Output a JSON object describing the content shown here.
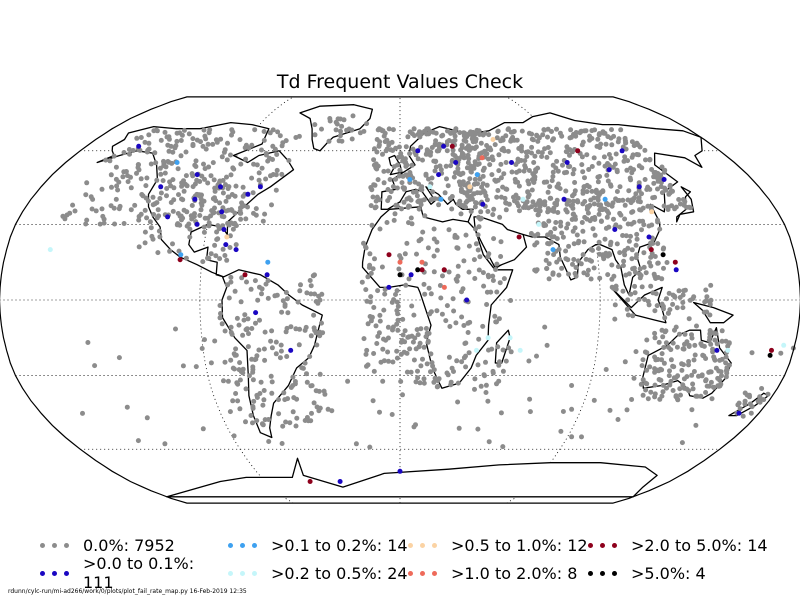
{
  "title": "Td Frequent Values Check",
  "footer": "rdunn/cylc-run/mi-ad266/work/0/plots/plot_fail_rate_map.py   16-Feb-2019 12:35",
  "legend": [
    {
      "label": "0.0%: 7952",
      "color": "#8c8c8c"
    },
    {
      "label": ">0.0 to 0.1%: 111",
      "color": "#1a06c2"
    },
    {
      "label": ">0.1 to 0.2%: 14",
      "color": "#3ea1f0"
    },
    {
      "label": ">0.2 to 0.5%: 24",
      "color": "#c5f6fa"
    },
    {
      "label": ">0.5 to 1.0%: 12",
      "color": "#fbd3a4"
    },
    {
      "label": ">1.0 to 2.0%: 8",
      "color": "#ee6a5a"
    },
    {
      "label": ">2.0 to 5.0%: 14",
      "color": "#8e001c"
    },
    {
      "label": ">5.0%: 4",
      "color": "#000000"
    }
  ],
  "chart_data": {
    "type": "scatter",
    "projection": "Robinson",
    "grid": true,
    "categories": [
      "0.0%",
      ">0.0 to 0.1%",
      ">0.1 to 0.2%",
      ">0.2 to 0.5%",
      ">0.5 to 1.0%",
      ">1.0 to 2.0%",
      ">2.0 to 5.0%",
      ">5.0%"
    ],
    "counts": [
      7952,
      111,
      14,
      24,
      12,
      8,
      14,
      4
    ],
    "highlighted_stations": [
      {
        "lon": -75,
        "lat": 42,
        "class": 1
      },
      {
        "lon": -100,
        "lat": 40,
        "class": 1
      },
      {
        "lon": -120,
        "lat": 45,
        "class": 1
      },
      {
        "lon": -150,
        "lat": 62,
        "class": 1
      },
      {
        "lon": -85,
        "lat": 35,
        "class": 1
      },
      {
        "lon": -95,
        "lat": 30,
        "class": 1
      },
      {
        "lon": -70,
        "lat": 45,
        "class": 1
      },
      {
        "lon": -82,
        "lat": 28,
        "class": 1
      },
      {
        "lon": -110,
        "lat": 33,
        "class": 1
      },
      {
        "lon": -80,
        "lat": 22,
        "class": 1
      },
      {
        "lon": -75,
        "lat": 20,
        "class": 1
      },
      {
        "lon": -60,
        "lat": 10,
        "class": 1
      },
      {
        "lon": -65,
        "lat": -5,
        "class": 1
      },
      {
        "lon": -50,
        "lat": -20,
        "class": 1
      },
      {
        "lon": 10,
        "lat": 60,
        "class": 1
      },
      {
        "lon": 25,
        "lat": 62,
        "class": 1
      },
      {
        "lon": 30,
        "lat": 55,
        "class": 1
      },
      {
        "lon": 20,
        "lat": 50,
        "class": 1
      },
      {
        "lon": 60,
        "lat": 55,
        "class": 1
      },
      {
        "lon": 90,
        "lat": 55,
        "class": 1
      },
      {
        "lon": 110,
        "lat": 52,
        "class": 1
      },
      {
        "lon": 125,
        "lat": 60,
        "class": 1
      },
      {
        "lon": 135,
        "lat": 48,
        "class": 1
      },
      {
        "lon": 100,
        "lat": 28,
        "class": 1
      },
      {
        "lon": 115,
        "lat": 25,
        "class": 1
      },
      {
        "lon": 125,
        "lat": 12,
        "class": 1
      },
      {
        "lon": 40,
        "lat": 38,
        "class": 1
      },
      {
        "lon": 5,
        "lat": 10,
        "class": 1
      },
      {
        "lon": -5,
        "lat": 5,
        "class": 1
      },
      {
        "lon": 30,
        "lat": 0,
        "class": 1
      },
      {
        "lon": 145,
        "lat": -20,
        "class": 1
      },
      {
        "lon": 170,
        "lat": -45,
        "class": 1
      },
      {
        "lon": 120,
        "lat": 45,
        "class": 1
      },
      {
        "lon": 80,
        "lat": 40,
        "class": 1
      },
      {
        "lon": -90,
        "lat": 45,
        "class": 1
      },
      {
        "lon": -105,
        "lat": 50,
        "class": 1
      },
      {
        "lon": 0,
        "lat": -70,
        "class": 1
      },
      {
        "lon": -40,
        "lat": -75,
        "class": 1
      },
      {
        "lon": -100,
        "lat": 18,
        "class": 2
      },
      {
        "lon": 40,
        "lat": 50,
        "class": 2
      },
      {
        "lon": 5,
        "lat": 48,
        "class": 2
      },
      {
        "lon": 100,
        "lat": 40,
        "class": 2
      },
      {
        "lon": -120,
        "lat": 55,
        "class": 2
      },
      {
        "lon": 20,
        "lat": 40,
        "class": 2
      },
      {
        "lon": 70,
        "lat": 20,
        "class": 2
      },
      {
        "lon": -60,
        "lat": 15,
        "class": 2
      },
      {
        "lon": 60,
        "lat": 40,
        "class": 3
      },
      {
        "lon": 65,
        "lat": 30,
        "class": 3
      },
      {
        "lon": 40,
        "lat": -15,
        "class": 3
      },
      {
        "lon": 35,
        "lat": -20,
        "class": 3
      },
      {
        "lon": 55,
        "lat": -20,
        "class": 3
      },
      {
        "lon": 175,
        "lat": -18,
        "class": 3
      },
      {
        "lon": 150,
        "lat": -20,
        "class": 3
      },
      {
        "lon": -160,
        "lat": 20,
        "class": 3
      },
      {
        "lon": 50,
        "lat": -15,
        "class": 3
      },
      {
        "lon": 15,
        "lat": 45,
        "class": 3
      },
      {
        "lon": 55,
        "lat": 65,
        "class": 4
      },
      {
        "lon": 35,
        "lat": 45,
        "class": 4
      },
      {
        "lon": 120,
        "lat": 35,
        "class": 4
      },
      {
        "lon": -80,
        "lat": 25,
        "class": 4
      },
      {
        "lon": 20,
        "lat": 5,
        "class": 5
      },
      {
        "lon": 45,
        "lat": 57,
        "class": 5
      },
      {
        "lon": 0,
        "lat": 15,
        "class": 5
      },
      {
        "lon": 10,
        "lat": 15,
        "class": 5
      },
      {
        "lon": 125,
        "lat": 15,
        "class": 6
      },
      {
        "lon": -5,
        "lat": 18,
        "class": 6
      },
      {
        "lon": 10,
        "lat": 12,
        "class": 6
      },
      {
        "lon": 20,
        "lat": 12,
        "class": 6
      },
      {
        "lon": 30,
        "lat": 62,
        "class": 6
      },
      {
        "lon": 55,
        "lat": 25,
        "class": 6
      },
      {
        "lon": 100,
        "lat": 60,
        "class": 6
      },
      {
        "lon": 170,
        "lat": -20,
        "class": 6
      },
      {
        "lon": -70,
        "lat": 10,
        "class": 6
      },
      {
        "lon": -100,
        "lat": 16,
        "class": 6
      },
      {
        "lon": 115,
        "lat": 20,
        "class": 6
      },
      {
        "lon": -60,
        "lat": -75,
        "class": 6
      },
      {
        "lon": 8,
        "lat": 12,
        "class": 7
      },
      {
        "lon": 120,
        "lat": 18,
        "class": 7
      },
      {
        "lon": 170,
        "lat": -22,
        "class": 7
      },
      {
        "lon": 0,
        "lat": 10,
        "class": 7
      }
    ]
  }
}
